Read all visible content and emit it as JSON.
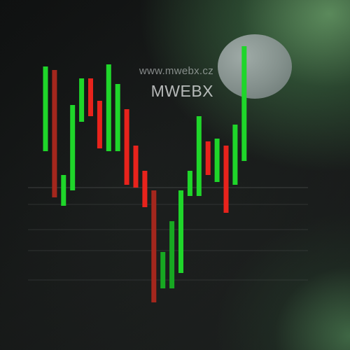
{
  "brand": {
    "url": "www.mwebx.cz",
    "name": "MWEBX"
  },
  "colors": {
    "up": "#1fd62a",
    "down": "#e8231c",
    "up_dim": "#17a822",
    "down_dim": "#a4271d",
    "gridline": "#4a4e4d"
  },
  "chart_data": {
    "type": "bar",
    "ylim": [
      0,
      100
    ],
    "grid": true,
    "bars": [
      {
        "low": 56.8,
        "high": 81.0,
        "dir": "up"
      },
      {
        "low": 43.6,
        "high": 80.0,
        "dir": "down"
      },
      {
        "low": 41.2,
        "high": 50.0,
        "dir": "up"
      },
      {
        "low": 45.6,
        "high": 70.0,
        "dir": "up"
      },
      {
        "low": 65.2,
        "high": 77.6,
        "dir": "up"
      },
      {
        "low": 66.8,
        "high": 77.6,
        "dir": "down"
      },
      {
        "low": 57.6,
        "high": 71.2,
        "dir": "down"
      },
      {
        "low": 56.8,
        "high": 81.6,
        "dir": "up"
      },
      {
        "low": 56.8,
        "high": 76.0,
        "dir": "up"
      },
      {
        "low": 47.2,
        "high": 68.8,
        "dir": "down"
      },
      {
        "low": 46.4,
        "high": 58.4,
        "dir": "down"
      },
      {
        "low": 40.8,
        "high": 51.2,
        "dir": "down"
      },
      {
        "low": 13.6,
        "high": 45.6,
        "dir": "down"
      },
      {
        "low": 17.6,
        "high": 28.0,
        "dir": "up"
      },
      {
        "low": 17.6,
        "high": 36.8,
        "dir": "up"
      },
      {
        "low": 22.0,
        "high": 45.6,
        "dir": "up"
      },
      {
        "low": 44.0,
        "high": 51.2,
        "dir": "up"
      },
      {
        "low": 44.0,
        "high": 66.8,
        "dir": "up"
      },
      {
        "low": 50.0,
        "high": 59.6,
        "dir": "down"
      },
      {
        "low": 48.0,
        "high": 60.4,
        "dir": "up"
      },
      {
        "low": 39.2,
        "high": 58.4,
        "dir": "down"
      },
      {
        "low": 47.2,
        "high": 64.4,
        "dir": "up"
      },
      {
        "low": 54.0,
        "high": 86.8,
        "dir": "up"
      }
    ],
    "gridlines": [
      46.4,
      41.6,
      34.4,
      28.4,
      20.0
    ]
  }
}
